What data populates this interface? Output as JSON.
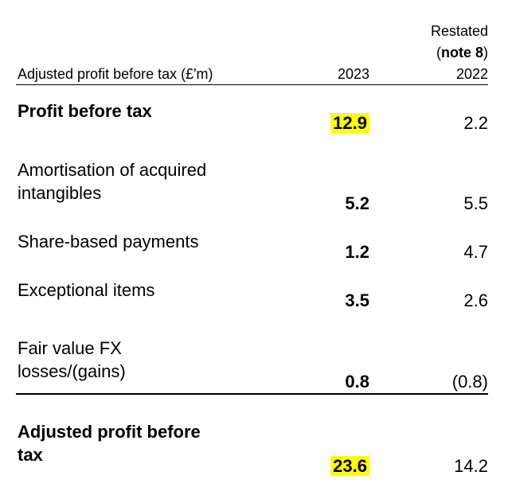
{
  "header": {
    "table_caption": "Adjusted profit before tax (£'m)",
    "restated_label": "Restated",
    "note_open": "(",
    "note_ref": "note 8",
    "note_close": ")",
    "current_year": "2023",
    "prior_year": "2022"
  },
  "rows": [
    {
      "label": "Profit before tax",
      "current": "12.9",
      "prior": "2.2",
      "bold": true,
      "highlight": true
    },
    {
      "label_line1": "Amortisation of acquired",
      "label_line2": "intangibles",
      "current": "5.2",
      "prior": "5.5"
    },
    {
      "label": "Share-based payments",
      "current": "1.2",
      "prior": "4.7"
    },
    {
      "label": "Exceptional items",
      "current": "3.5",
      "prior": "2.6"
    },
    {
      "label_line1": "Fair value FX",
      "label_line2": "losses/(gains)",
      "current": "0.8",
      "prior": "(0.8)"
    },
    {
      "label_line1": "Adjusted profit before",
      "label_line2": "tax",
      "current": "23.6",
      "prior": "14.2",
      "bold": true,
      "highlight": true
    }
  ],
  "colors": {
    "highlight": "#ffff00",
    "text": "#000000"
  }
}
